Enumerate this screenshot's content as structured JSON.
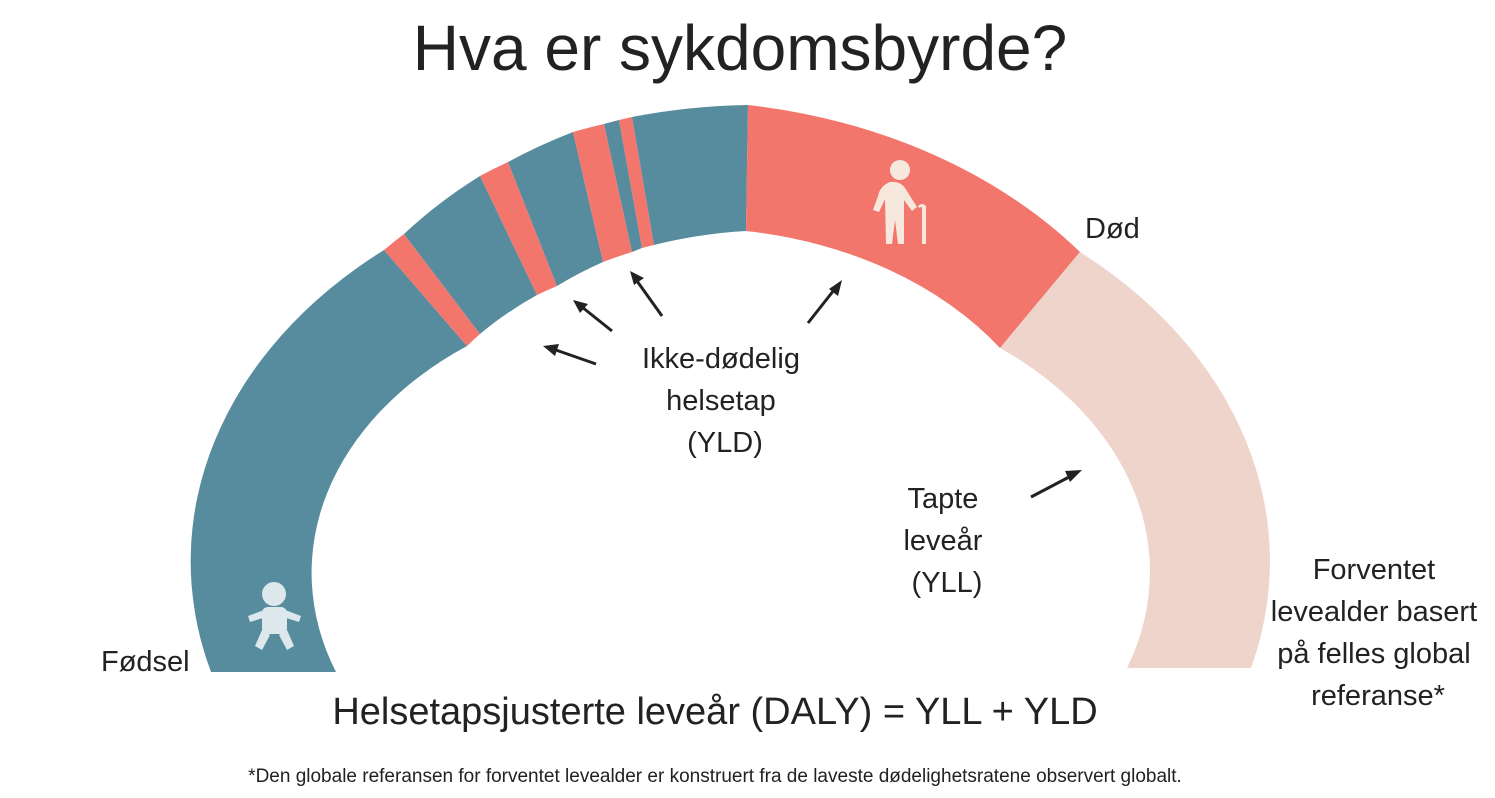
{
  "title": "Hva er sykdomsbyrde?",
  "colors": {
    "healthy": "#578c9e",
    "yld": "#f2766c",
    "yll_reference": "#efd4cc",
    "text": "#222222",
    "icon_light": "#dde8ec",
    "icon_warm": "#f7e8de"
  },
  "icons": {
    "start": "baby-icon",
    "end_of_life": "elderly-person-with-cane-icon"
  },
  "labels": {
    "birth": "Fødsel",
    "death": "Død",
    "yld": [
      "Ikke-dødelig",
      "helsetap",
      "(YLD)"
    ],
    "yll": [
      "Tapte",
      "leveår",
      "(YLL)"
    ],
    "reference": [
      "Forventet",
      "levealder basert",
      "på felles global",
      "referanse*"
    ]
  },
  "formula": "Helsetapsjusterte leveår (DALY) = YLL + YLD",
  "footnote": "*Den globale referansen for forventet levealder er konstruert fra de laveste dødelighetsratene observert globalt."
}
